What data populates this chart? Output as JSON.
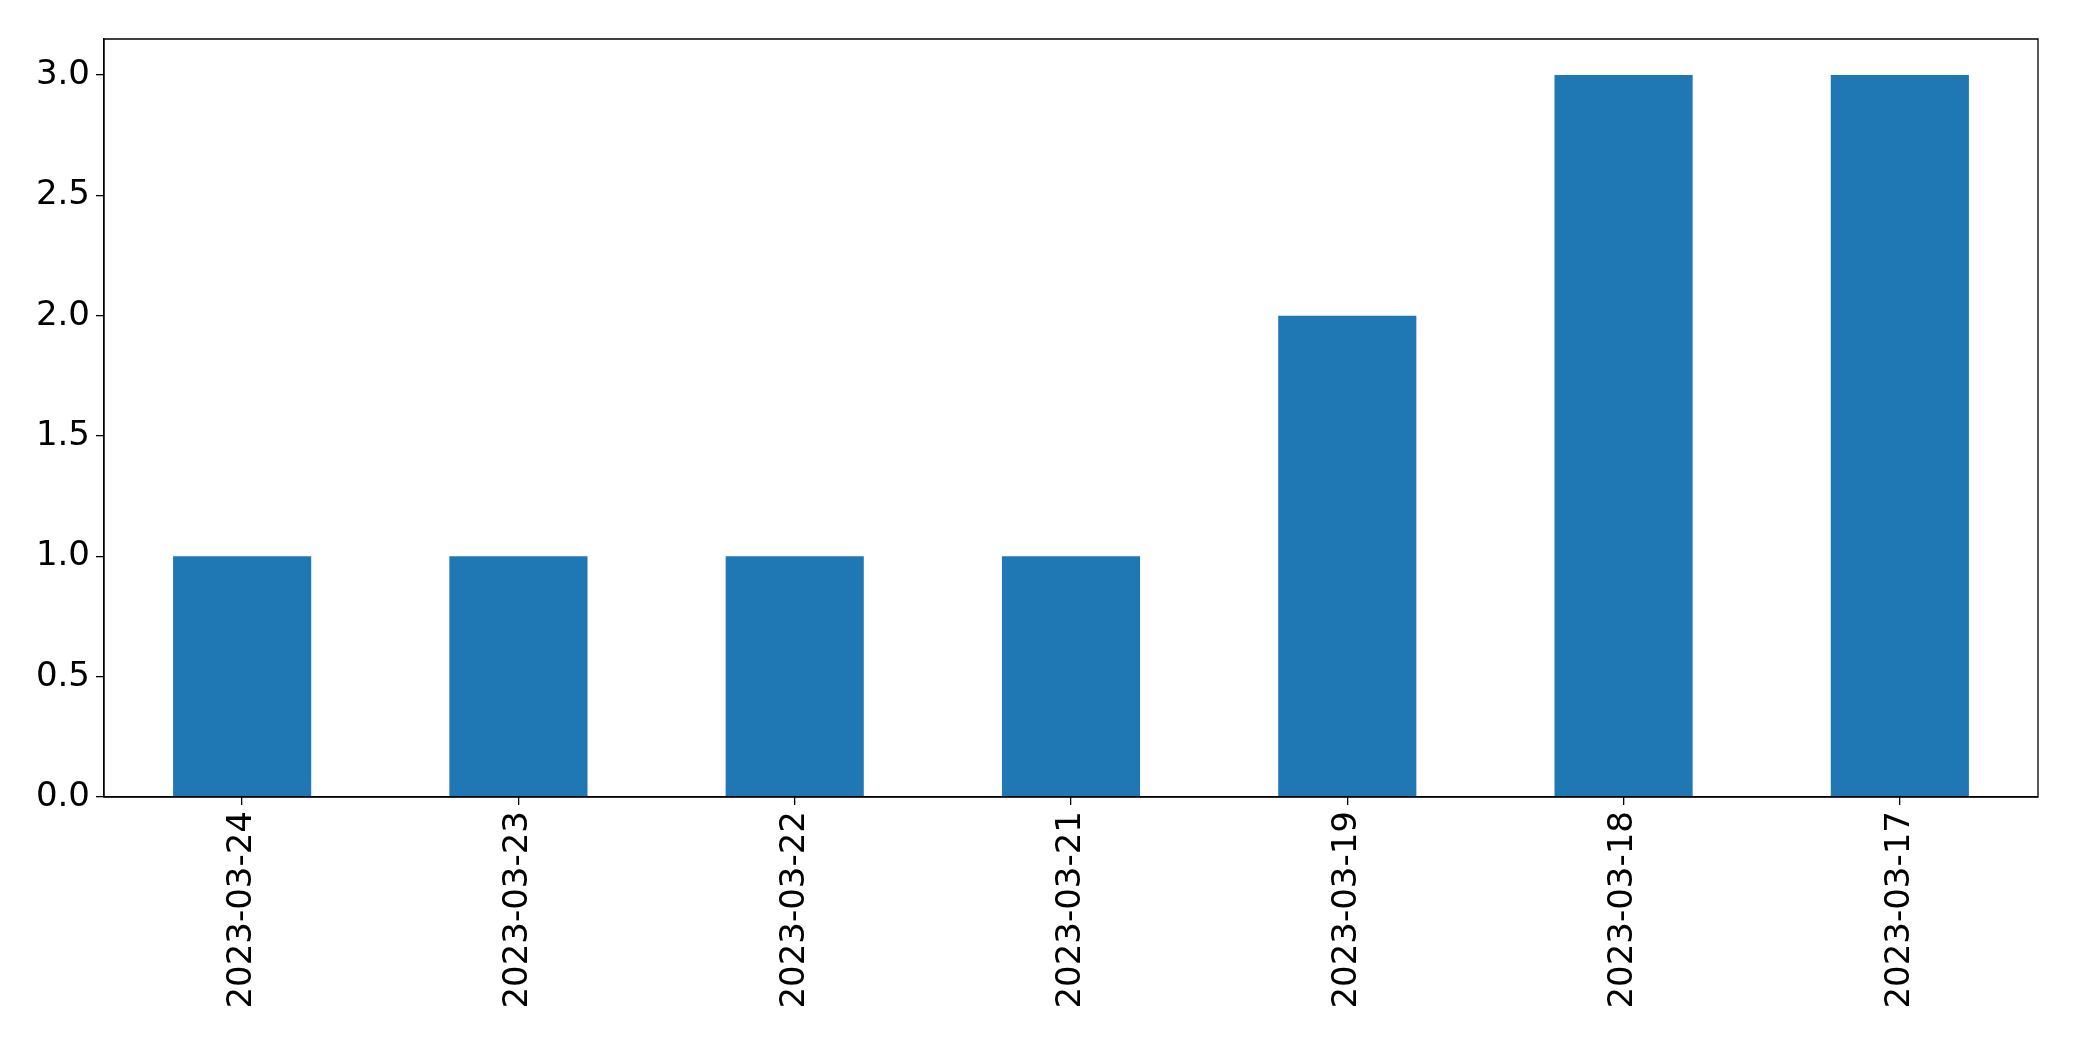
{
  "chart_data": {
    "type": "bar",
    "categories": [
      "2023-03-24",
      "2023-03-23",
      "2023-03-22",
      "2023-03-21",
      "2023-03-19",
      "2023-03-18",
      "2023-03-17"
    ],
    "values": [
      1,
      1,
      1,
      1,
      2,
      3,
      3
    ],
    "color": "#1f77b4",
    "ylim": [
      0,
      3.15
    ],
    "yticks": [
      {
        "value": 0,
        "label": "0.0"
      },
      {
        "value": 0.5,
        "label": "0.5"
      },
      {
        "value": 1,
        "label": "1.0"
      },
      {
        "value": 1.5,
        "label": "1.5"
      },
      {
        "value": 2,
        "label": "2.0"
      },
      {
        "value": 2.5,
        "label": "2.5"
      },
      {
        "value": 3,
        "label": "3.0"
      }
    ]
  }
}
